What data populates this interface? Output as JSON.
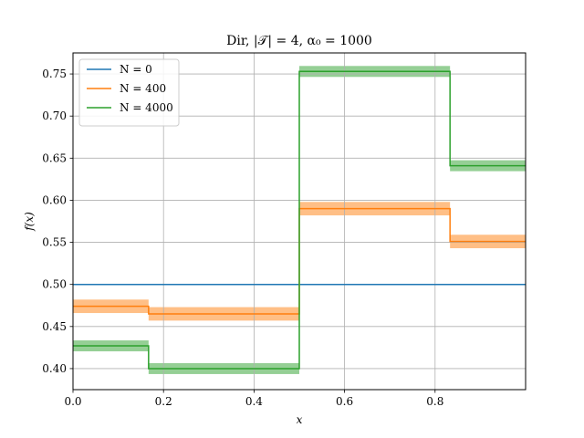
{
  "chart_data": {
    "type": "line",
    "title": "Dir, |𝒯| = 4, α₀ = 1000",
    "xlabel": "x",
    "ylabel": "f(x)",
    "xlim": [
      0,
      1
    ],
    "ylim": [
      0.375,
      0.775
    ],
    "xticks": [
      0.0,
      0.2,
      0.4,
      0.6,
      0.8
    ],
    "xtick_labels": [
      "0.0",
      "0.2",
      "0.4",
      "0.6",
      "0.8"
    ],
    "yticks": [
      0.4,
      0.45,
      0.5,
      0.55,
      0.6,
      0.65,
      0.7,
      0.75
    ],
    "ytick_labels": [
      "0.40",
      "0.45",
      "0.50",
      "0.55",
      "0.60",
      "0.65",
      "0.70",
      "0.75"
    ],
    "grid": true,
    "legend_position": "top-left",
    "series": [
      {
        "name": "N = 0",
        "color": "#1f77b4",
        "x": [
          0,
          1
        ],
        "y": [
          0.5,
          0.5
        ],
        "band": 0.0
      },
      {
        "name": "N = 400",
        "color": "#ff7f0e",
        "x": [
          0,
          0.167,
          0.167,
          0.5,
          0.5,
          0.833,
          0.833,
          1.0
        ],
        "y": [
          0.474,
          0.474,
          0.465,
          0.465,
          0.59,
          0.59,
          0.551,
          0.551
        ],
        "band": 0.008
      },
      {
        "name": "N = 4000",
        "color": "#2ca02c",
        "x": [
          0,
          0.167,
          0.167,
          0.5,
          0.5,
          0.833,
          0.833,
          1.0
        ],
        "y": [
          0.427,
          0.427,
          0.4,
          0.4,
          0.753,
          0.753,
          0.641,
          0.641
        ],
        "band": 0.0065
      }
    ]
  }
}
